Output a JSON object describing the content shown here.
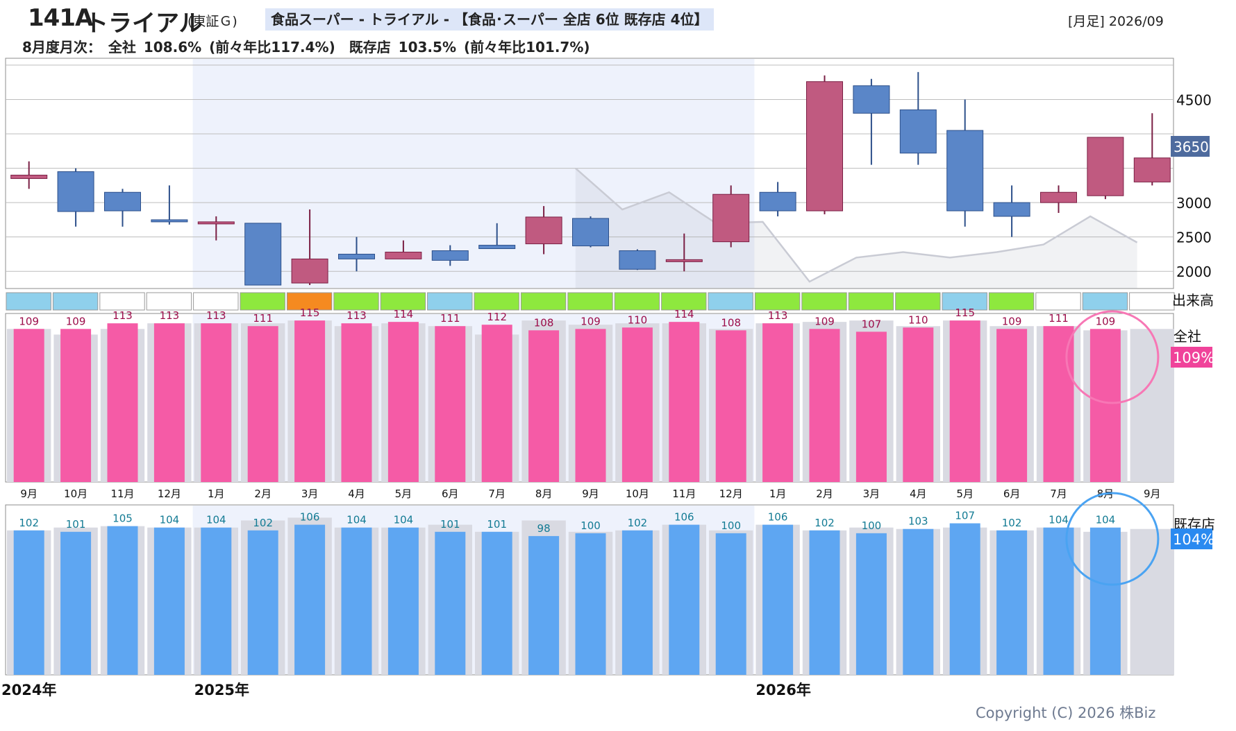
{
  "header": {
    "code": "141A",
    "name": "トライアル",
    "exchange": "(東証Ｇ)",
    "sector": "食品スーパー - トライアル - 【食品･スーパー 全店 6位 既存店 4位】",
    "period": "[月足] 2026/09",
    "summary": "8月度月次：　全社 108.6% (前々年比117.4%)　既存店 103.5% (前々年比101.7%)"
  },
  "labels": {
    "volume": "出来高",
    "company": "全社",
    "existing": "既存店",
    "copyright": "Copyright (C) 2026 株Biz"
  },
  "badges": {
    "price": "3650",
    "company": "109%",
    "existing": "104%"
  },
  "colors": {
    "up": "#c05a80",
    "down": "#5a86c8",
    "pink": "#f55ba6",
    "blue": "#5ea6f2",
    "gray_bar": "#d9dae2",
    "highlight_bg": "#eef2fc",
    "price_badge": "#4e6b9e",
    "company_badge": "#f0439a",
    "existing_badge": "#2a8af0"
  },
  "chart_data": [
    {
      "type": "candlestick",
      "x": [
        "2024/09",
        "2024/10",
        "2024/11",
        "2024/12",
        "2025/01",
        "2025/02",
        "2025/03",
        "2025/04",
        "2025/05",
        "2025/06",
        "2025/07",
        "2025/08",
        "2025/09",
        "2025/10",
        "2025/11",
        "2025/12",
        "2026/01",
        "2026/02",
        "2026/03",
        "2026/04",
        "2026/05",
        "2026/06",
        "2026/07",
        "2026/08",
        "2026/09"
      ],
      "open": [
        3350,
        3450,
        3150,
        2750,
        2720,
        2700,
        1830,
        2250,
        2180,
        2300,
        2380,
        2400,
        2770,
        2300,
        2150,
        2430,
        3150,
        2880,
        4700,
        4350,
        4050,
        3000,
        3000,
        3100,
        3300
      ],
      "high": [
        3600,
        3500,
        3200,
        3250,
        2800,
        2700,
        2900,
        2500,
        2450,
        2380,
        2700,
        2950,
        2800,
        2320,
        2550,
        3250,
        3300,
        4850,
        4800,
        4900,
        4500,
        3250,
        3250,
        3950,
        4300
      ],
      "low": [
        3200,
        2650,
        2650,
        2680,
        2450,
        1800,
        1800,
        2000,
        2180,
        2080,
        2330,
        2250,
        2350,
        2020,
        2000,
        2350,
        2800,
        2830,
        3550,
        3550,
        2650,
        2500,
        2850,
        3050,
        3250
      ],
      "close": [
        3400,
        2870,
        2880,
        2720,
        2720,
        1800,
        2180,
        2180,
        2280,
        2160,
        2330,
        2790,
        2370,
        2030,
        2170,
        3120,
        2880,
        4760,
        4300,
        3720,
        2880,
        2800,
        3150,
        3950,
        3650
      ],
      "shade": [
        null,
        null,
        null,
        null,
        null,
        null,
        null,
        null,
        null,
        null,
        null,
        null,
        3500,
        2900,
        3150,
        2700,
        2720,
        1850,
        2200,
        2280,
        2200,
        2280,
        2390,
        2800,
        2420
      ],
      "ylim": [
        1750,
        5100
      ],
      "yticks": [
        2000,
        2500,
        3000,
        3650,
        4500
      ]
    },
    {
      "type": "volume-heat",
      "levels": [
        "c",
        "c",
        "w",
        "w",
        "w",
        "g",
        "o",
        "g",
        "g",
        "c",
        "g",
        "g",
        "g",
        "g",
        "g",
        "c",
        "g",
        "g",
        "g",
        "g",
        "c",
        "g",
        "w",
        "c",
        "w"
      ]
    },
    {
      "type": "bar",
      "title": "全社",
      "categories": [
        "9月",
        "10月",
        "11月",
        "12月",
        "1月",
        "2月",
        "3月",
        "4月",
        "5月",
        "6月",
        "7月",
        "8月",
        "9月",
        "10月",
        "11月",
        "12月",
        "1月",
        "2月",
        "3月",
        "4月",
        "5月",
        "6月",
        "7月",
        "8月",
        "9月"
      ],
      "values": [
        109,
        109,
        113,
        113,
        113,
        111,
        115,
        113,
        114,
        111,
        112,
        108,
        109,
        110,
        114,
        108,
        113,
        109,
        107,
        110,
        115,
        109,
        111,
        109,
        null
      ],
      "prior": [
        109,
        105,
        109,
        113,
        113,
        113,
        115,
        111,
        113,
        111,
        105,
        115,
        112,
        113,
        113,
        109,
        113,
        114,
        115,
        111,
        115,
        111,
        111,
        108,
        109
      ],
      "ylim": [
        0,
        120
      ]
    },
    {
      "type": "bar",
      "title": "既存店",
      "categories": [
        "9月",
        "10月",
        "11月",
        "12月",
        "1月",
        "2月",
        "3月",
        "4月",
        "5月",
        "6月",
        "7月",
        "8月",
        "9月",
        "10月",
        "11月",
        "12月",
        "1月",
        "2月",
        "3月",
        "4月",
        "5月",
        "6月",
        "7月",
        "8月",
        "9月"
      ],
      "values": [
        102,
        101,
        105,
        104,
        104,
        102,
        106,
        104,
        104,
        101,
        101,
        98,
        100,
        102,
        106,
        100,
        106,
        102,
        100,
        103,
        107,
        102,
        104,
        104,
        null
      ],
      "prior": [
        102,
        104,
        105,
        104,
        104,
        109,
        111,
        104,
        104,
        106,
        101,
        109,
        101,
        102,
        106,
        102,
        106,
        102,
        104,
        103,
        104,
        102,
        104,
        101,
        103
      ],
      "ylim": [
        0,
        120
      ]
    }
  ],
  "years": [
    {
      "label": "2024年",
      "index": 0
    },
    {
      "label": "2025年",
      "index": 4
    },
    {
      "label": "2026年",
      "index": 16
    }
  ]
}
